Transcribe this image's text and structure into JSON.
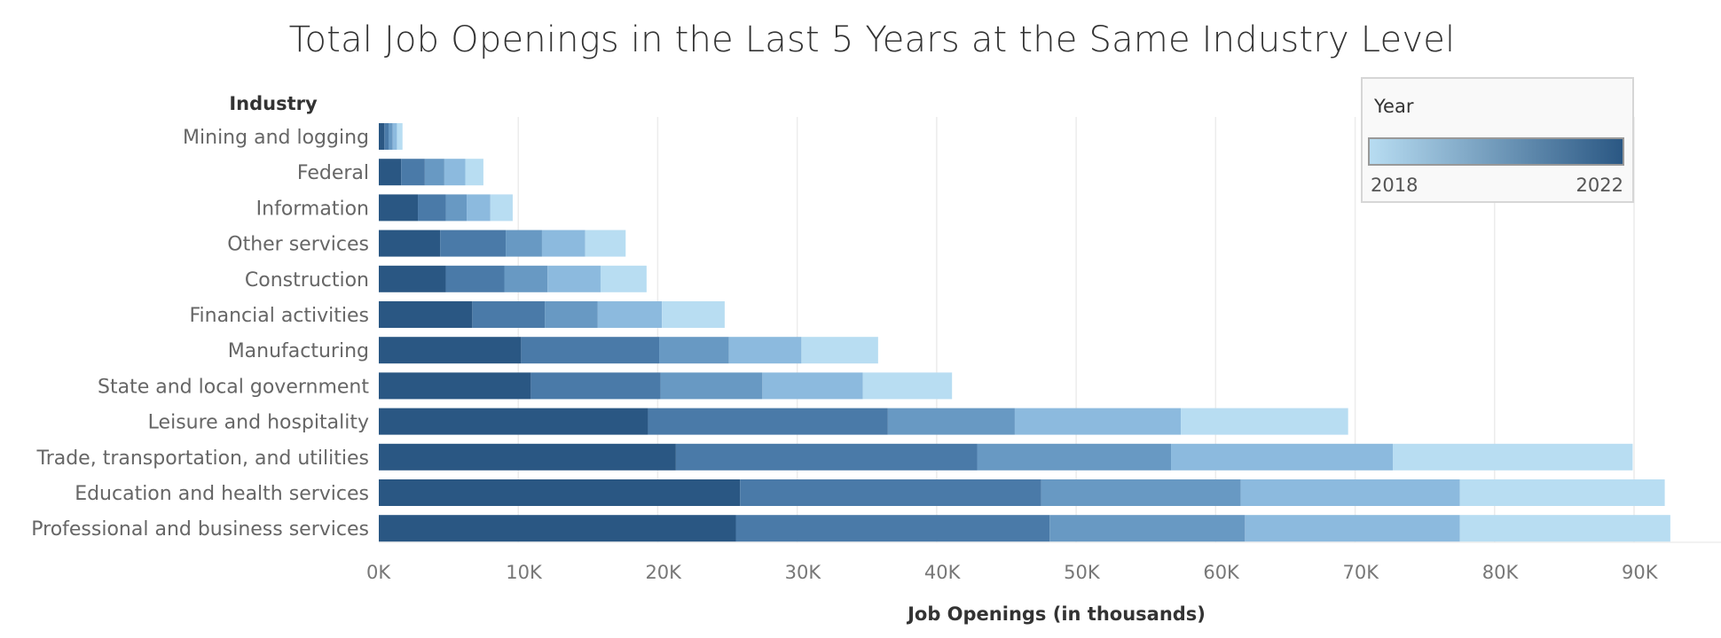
{
  "chart_data": {
    "type": "bar",
    "orientation": "horizontal",
    "stacked": true,
    "title": "Total Job Openings in the Last 5 Years at the Same Industry Level",
    "xlabel": "Job Openings (in thousands)",
    "ylabel": "Industry",
    "xlim": [
      0,
      95000
    ],
    "x_ticks": [
      0,
      10000,
      20000,
      30000,
      40000,
      50000,
      60000,
      70000,
      80000,
      90000
    ],
    "x_tick_labels": [
      "0K",
      "10K",
      "20K",
      "30K",
      "40K",
      "50K",
      "60K",
      "70K",
      "80K",
      "90K"
    ],
    "grid": true,
    "categories": [
      "Mining and logging",
      "Federal",
      "Information",
      "Other services",
      "Construction",
      "Financial activities",
      "Manufacturing",
      "State and local government",
      "Leisure and hospitality",
      "Trade, transportation, and utilities",
      "Education and health services",
      "Professional and business services"
    ],
    "series": [
      {
        "year": 2022,
        "color": "#2a5783",
        "values": [
          400,
          1600,
          2800,
          4400,
          4800,
          6700,
          10200,
          10900,
          19300,
          21300,
          25900,
          25600
        ]
      },
      {
        "year": 2021,
        "color": "#4a7aa8",
        "values": [
          300,
          1700,
          2000,
          4700,
          4200,
          5200,
          9900,
          9300,
          17200,
          21600,
          21600,
          22500
        ]
      },
      {
        "year": 2020,
        "color": "#6899c3",
        "values": [
          300,
          1400,
          1500,
          2600,
          3100,
          3800,
          5000,
          7300,
          9100,
          13900,
          14300,
          14000
        ]
      },
      {
        "year": 2019,
        "color": "#8cbade",
        "values": [
          300,
          1500,
          1700,
          3100,
          3800,
          4600,
          5200,
          7200,
          11900,
          15900,
          15700,
          15400
        ]
      },
      {
        "year": 2018,
        "color": "#b8ddf2",
        "values": [
          400,
          1300,
          1600,
          2900,
          3300,
          4500,
          5500,
          6400,
          12000,
          17200,
          14700,
          15100
        ]
      }
    ],
    "legend": {
      "title": "Year",
      "type": "continuous",
      "min_label": "2018",
      "max_label": "2022",
      "color_low": "#b8ddf2",
      "color_high": "#2a5783",
      "placement": "top-right"
    }
  }
}
